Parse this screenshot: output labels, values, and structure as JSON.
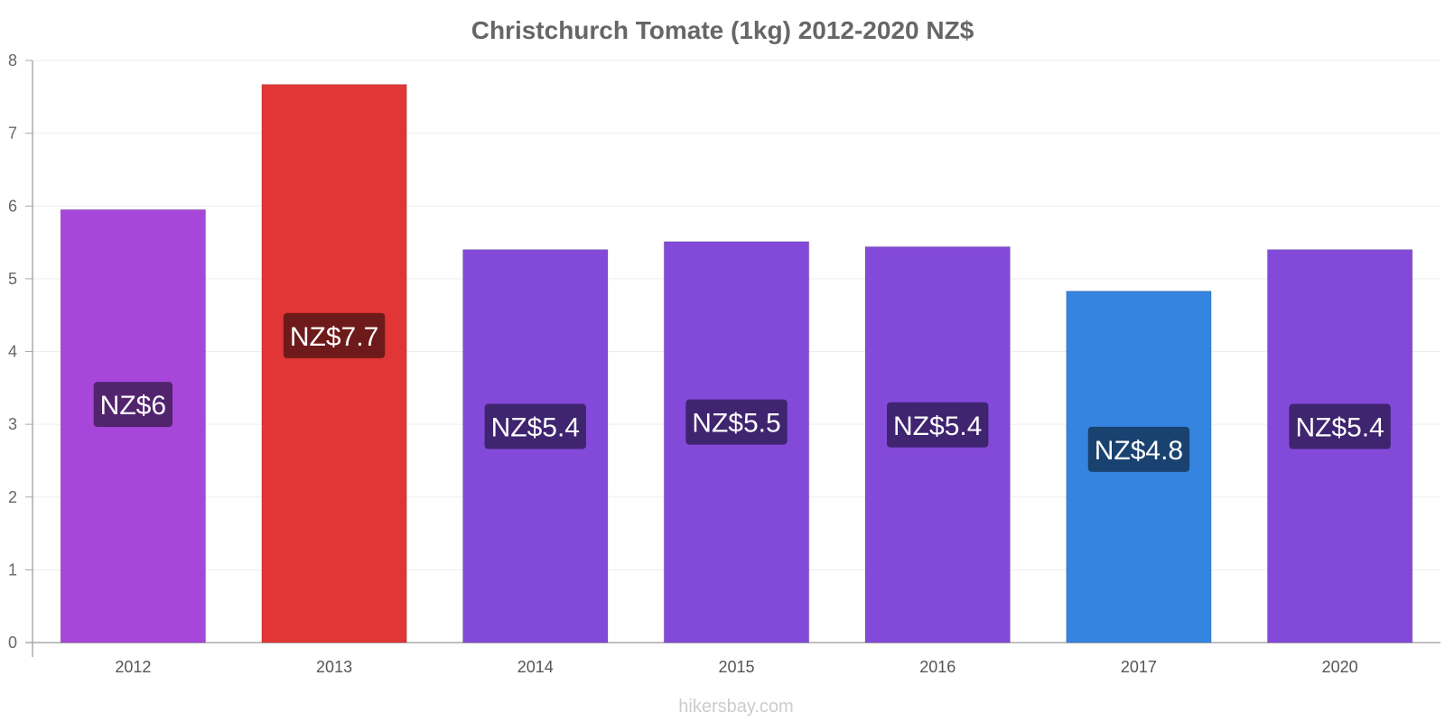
{
  "chart_data": {
    "type": "bar",
    "title": "Christchurch Tomate (1kg) 2012-2020 NZ$",
    "xlabel": "",
    "ylabel": "",
    "categories": [
      "2012",
      "2013",
      "2014",
      "2015",
      "2016",
      "2017",
      "2020"
    ],
    "values": [
      5.95,
      7.67,
      5.4,
      5.51,
      5.44,
      4.83,
      5.4
    ],
    "value_labels": [
      "NZ$6",
      "NZ$7.7",
      "NZ$5.4",
      "NZ$5.5",
      "NZ$5.4",
      "NZ$4.8",
      "NZ$5.4"
    ],
    "bar_colors": [
      "#a647d9",
      "#e23535",
      "#8349d9",
      "#8349d9",
      "#8349d9",
      "#3584e0",
      "#8349d9"
    ],
    "label_colors": [
      "#52246e",
      "#6e1a1a",
      "#3f2470",
      "#3f2470",
      "#3f2470",
      "#1a4270",
      "#3f2470"
    ],
    "ylim": [
      0,
      8
    ],
    "yticks": [
      "0",
      "1",
      "2",
      "3",
      "4",
      "5",
      "6",
      "7",
      "8"
    ],
    "grid": true,
    "legend": "none"
  },
  "watermark": "hikersbay.com"
}
